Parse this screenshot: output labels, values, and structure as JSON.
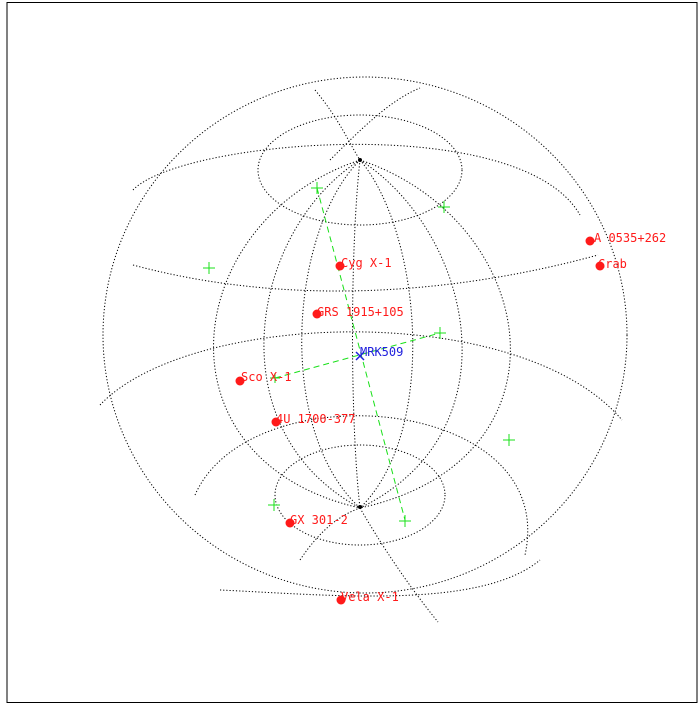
{
  "sky_map": {
    "target": {
      "label": "MRK509",
      "color": "#2020dd"
    },
    "sources": [
      {
        "id": "cyg-x-1",
        "label": "Cyg X-1"
      },
      {
        "id": "grs-1915",
        "label": "GRS 1915+105"
      },
      {
        "id": "sco-x-1",
        "label": "Sco X-1"
      },
      {
        "id": "4u-1700",
        "label": "4U 1700-377"
      },
      {
        "id": "gx-301",
        "label": "GX 301-2"
      },
      {
        "id": "vela-x-1",
        "label": "Vela X-1"
      },
      {
        "id": "a0535",
        "label": "A 0535+262"
      },
      {
        "id": "crab",
        "label": "Crab"
      }
    ],
    "colors": {
      "source": "#ff1a1a",
      "grid": "#000000",
      "overlay": "#18e018"
    }
  }
}
